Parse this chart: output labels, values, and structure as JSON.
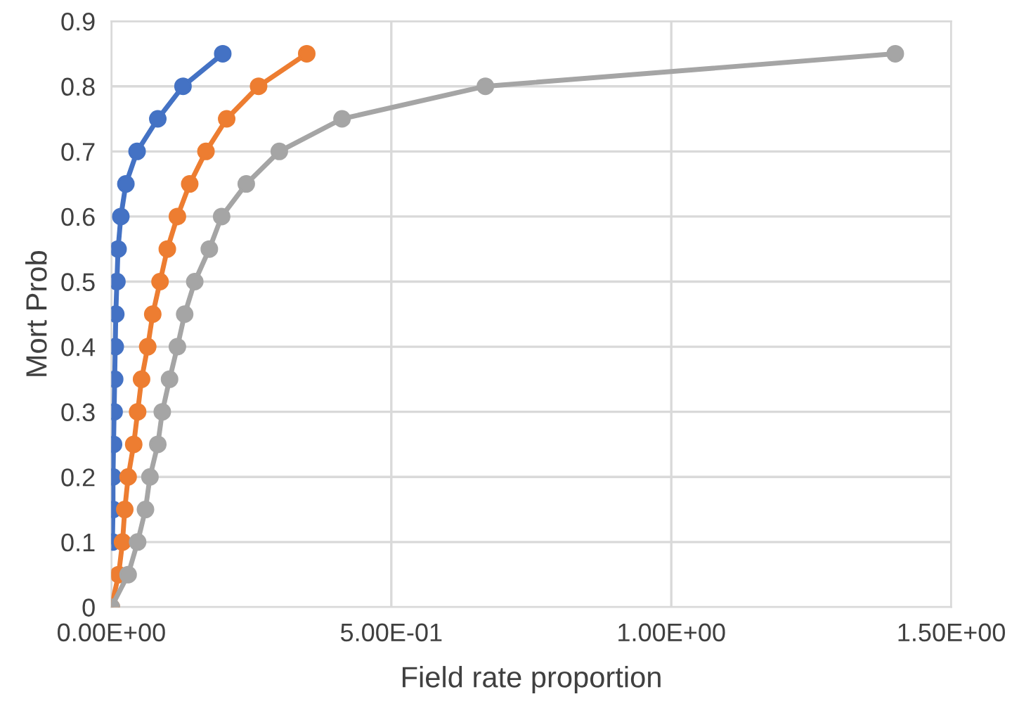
{
  "chart_data": {
    "type": "line",
    "xlabel": "Field rate proportion",
    "ylabel": "Mort Prob",
    "xlim": [
      0,
      1.5
    ],
    "ylim": [
      0,
      0.9
    ],
    "xticks": [
      {
        "value": 0,
        "label": "0.00E+00"
      },
      {
        "value": 0.5,
        "label": "5.00E-01"
      },
      {
        "value": 1.0,
        "label": "1.00E+00"
      },
      {
        "value": 1.5,
        "label": "1.50E+00"
      }
    ],
    "yticks": [
      0,
      0.1,
      0.2,
      0.3,
      0.4,
      0.5,
      0.6,
      0.7,
      0.8,
      0.9
    ],
    "grid": true,
    "marker": "circle",
    "line_style": "solid",
    "series": [
      {
        "color": "#4472c4",
        "x": [
          0.002,
          0.003,
          0.003,
          0.004,
          0.005,
          0.006,
          0.007,
          0.008,
          0.01,
          0.012,
          0.017,
          0.026,
          0.046,
          0.083,
          0.128,
          0.199
        ],
        "values": [
          0.1,
          0.15,
          0.2,
          0.25,
          0.3,
          0.35,
          0.4,
          0.45,
          0.5,
          0.55,
          0.6,
          0.65,
          0.7,
          0.75,
          0.8,
          0.85
        ]
      },
      {
        "color": "#ed7d31",
        "x": [
          0,
          0.013,
          0.02,
          0.024,
          0.03,
          0.04,
          0.047,
          0.054,
          0.065,
          0.074,
          0.087,
          0.1,
          0.118,
          0.14,
          0.169,
          0.206,
          0.263,
          0.349
        ],
        "values": [
          0,
          0.05,
          0.1,
          0.15,
          0.2,
          0.25,
          0.3,
          0.35,
          0.4,
          0.45,
          0.5,
          0.55,
          0.6,
          0.65,
          0.7,
          0.75,
          0.8,
          0.85
        ]
      },
      {
        "color": "#a5a5a5",
        "x": [
          0,
          0.03,
          0.047,
          0.061,
          0.069,
          0.083,
          0.091,
          0.104,
          0.118,
          0.131,
          0.149,
          0.175,
          0.197,
          0.241,
          0.3,
          0.412,
          0.668,
          1.4
        ],
        "values": [
          0,
          0.05,
          0.1,
          0.15,
          0.2,
          0.25,
          0.3,
          0.35,
          0.4,
          0.45,
          0.5,
          0.55,
          0.6,
          0.65,
          0.7,
          0.75,
          0.8,
          0.85
        ]
      }
    ]
  }
}
